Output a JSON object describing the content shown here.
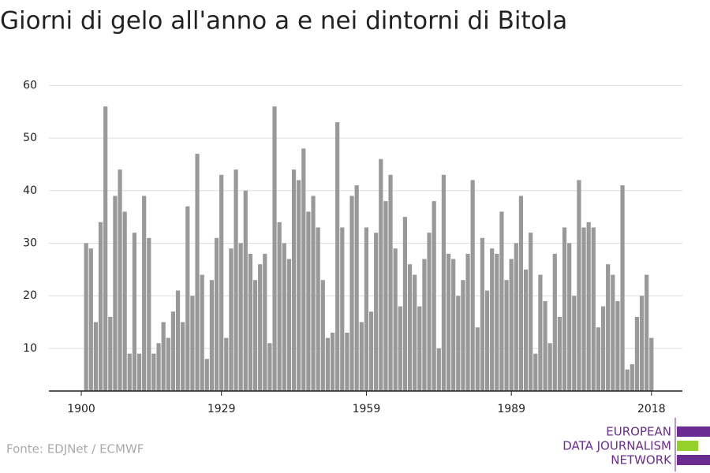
{
  "chart_data": {
    "type": "bar",
    "title": "Giorni di gelo all'anno a e nei dintorni di Bitola",
    "source": "Fonte: EDJNet / ECMWF",
    "logo": [
      "EUROPEAN",
      "DATA JOURNALISM",
      "NETWORK"
    ],
    "x": [
      1901,
      1902,
      1903,
      1904,
      1905,
      1906,
      1907,
      1908,
      1909,
      1910,
      1911,
      1912,
      1913,
      1914,
      1915,
      1916,
      1917,
      1918,
      1919,
      1920,
      1921,
      1922,
      1923,
      1924,
      1925,
      1926,
      1927,
      1928,
      1929,
      1930,
      1931,
      1932,
      1933,
      1934,
      1935,
      1936,
      1937,
      1938,
      1939,
      1940,
      1941,
      1942,
      1943,
      1944,
      1945,
      1946,
      1947,
      1948,
      1949,
      1950,
      1951,
      1952,
      1953,
      1954,
      1955,
      1956,
      1957,
      1958,
      1959,
      1960,
      1961,
      1962,
      1963,
      1964,
      1965,
      1966,
      1967,
      1968,
      1969,
      1970,
      1971,
      1972,
      1973,
      1974,
      1975,
      1976,
      1977,
      1978,
      1979,
      1980,
      1981,
      1982,
      1983,
      1984,
      1985,
      1986,
      1987,
      1988,
      1989,
      1990,
      1991,
      1992,
      1993,
      1994,
      1995,
      1996,
      1997,
      1998,
      1999,
      2000,
      2001,
      2002,
      2003,
      2004,
      2005,
      2006,
      2007,
      2008,
      2009,
      2010,
      2011,
      2012,
      2013,
      2014,
      2015,
      2016,
      2017,
      2018
    ],
    "values": [
      30,
      29,
      15,
      34,
      56,
      16,
      39,
      44,
      36,
      9,
      32,
      9,
      39,
      31,
      9,
      11,
      15,
      12,
      17,
      21,
      15,
      37,
      20,
      47,
      24,
      8,
      23,
      31,
      43,
      12,
      29,
      44,
      30,
      40,
      28,
      23,
      26,
      28,
      11,
      56,
      34,
      30,
      27,
      44,
      42,
      48,
      36,
      39,
      33,
      23,
      12,
      13,
      53,
      33,
      13,
      39,
      41,
      15,
      33,
      17,
      32,
      46,
      38,
      43,
      29,
      18,
      35,
      26,
      24,
      18,
      27,
      32,
      38,
      10,
      43,
      28,
      27,
      20,
      23,
      28,
      42,
      14,
      31,
      21,
      29,
      28,
      36,
      23,
      27,
      30,
      39,
      25,
      32,
      9,
      24,
      19,
      11,
      28,
      16,
      33,
      30,
      20,
      42,
      33,
      34,
      33,
      14,
      18,
      26,
      24,
      19,
      41,
      6,
      7,
      16,
      20,
      24,
      12
    ],
    "color": "#999999",
    "xlim": [
      1893.3,
      2024.4
    ],
    "xticks": [
      1900,
      1929,
      1959,
      1989,
      2018
    ],
    "ylim": [
      1.9,
      62
    ],
    "yticks": [
      10,
      20,
      30,
      40,
      50,
      60
    ],
    "grid": true
  }
}
